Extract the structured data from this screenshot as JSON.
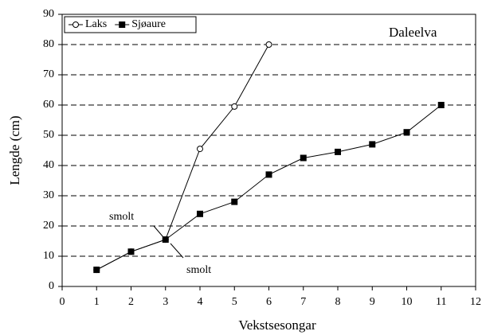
{
  "chart_data": {
    "type": "line",
    "xlabel": "Vekstsesongar",
    "ylabel": "Lengde (cm)",
    "annotations": [
      "Daleelva",
      "smolt",
      "smolt"
    ],
    "x": [
      1,
      2,
      3,
      4,
      5,
      6,
      7,
      8,
      9,
      10,
      11
    ],
    "series": [
      {
        "name": "Laks",
        "color": "#000000",
        "marker": "circle",
        "values": [
          5.5,
          11.5,
          15.5,
          45.5,
          59.5,
          80,
          null,
          null,
          null,
          null,
          null
        ]
      },
      {
        "name": "Sjøaure",
        "color": "#000000",
        "marker": "square",
        "values": [
          5.5,
          11.5,
          15.5,
          24,
          28,
          37,
          42.5,
          44.5,
          47,
          51,
          60
        ]
      }
    ],
    "xlim": [
      0,
      12
    ],
    "xticks": [
      0,
      1,
      2,
      3,
      4,
      5,
      6,
      7,
      8,
      9,
      10,
      11,
      12
    ],
    "ylim": [
      0,
      90
    ],
    "yticks": [
      0,
      10,
      20,
      30,
      40,
      50,
      60,
      70,
      80,
      90
    ],
    "grid": true,
    "legend": "top-left"
  }
}
